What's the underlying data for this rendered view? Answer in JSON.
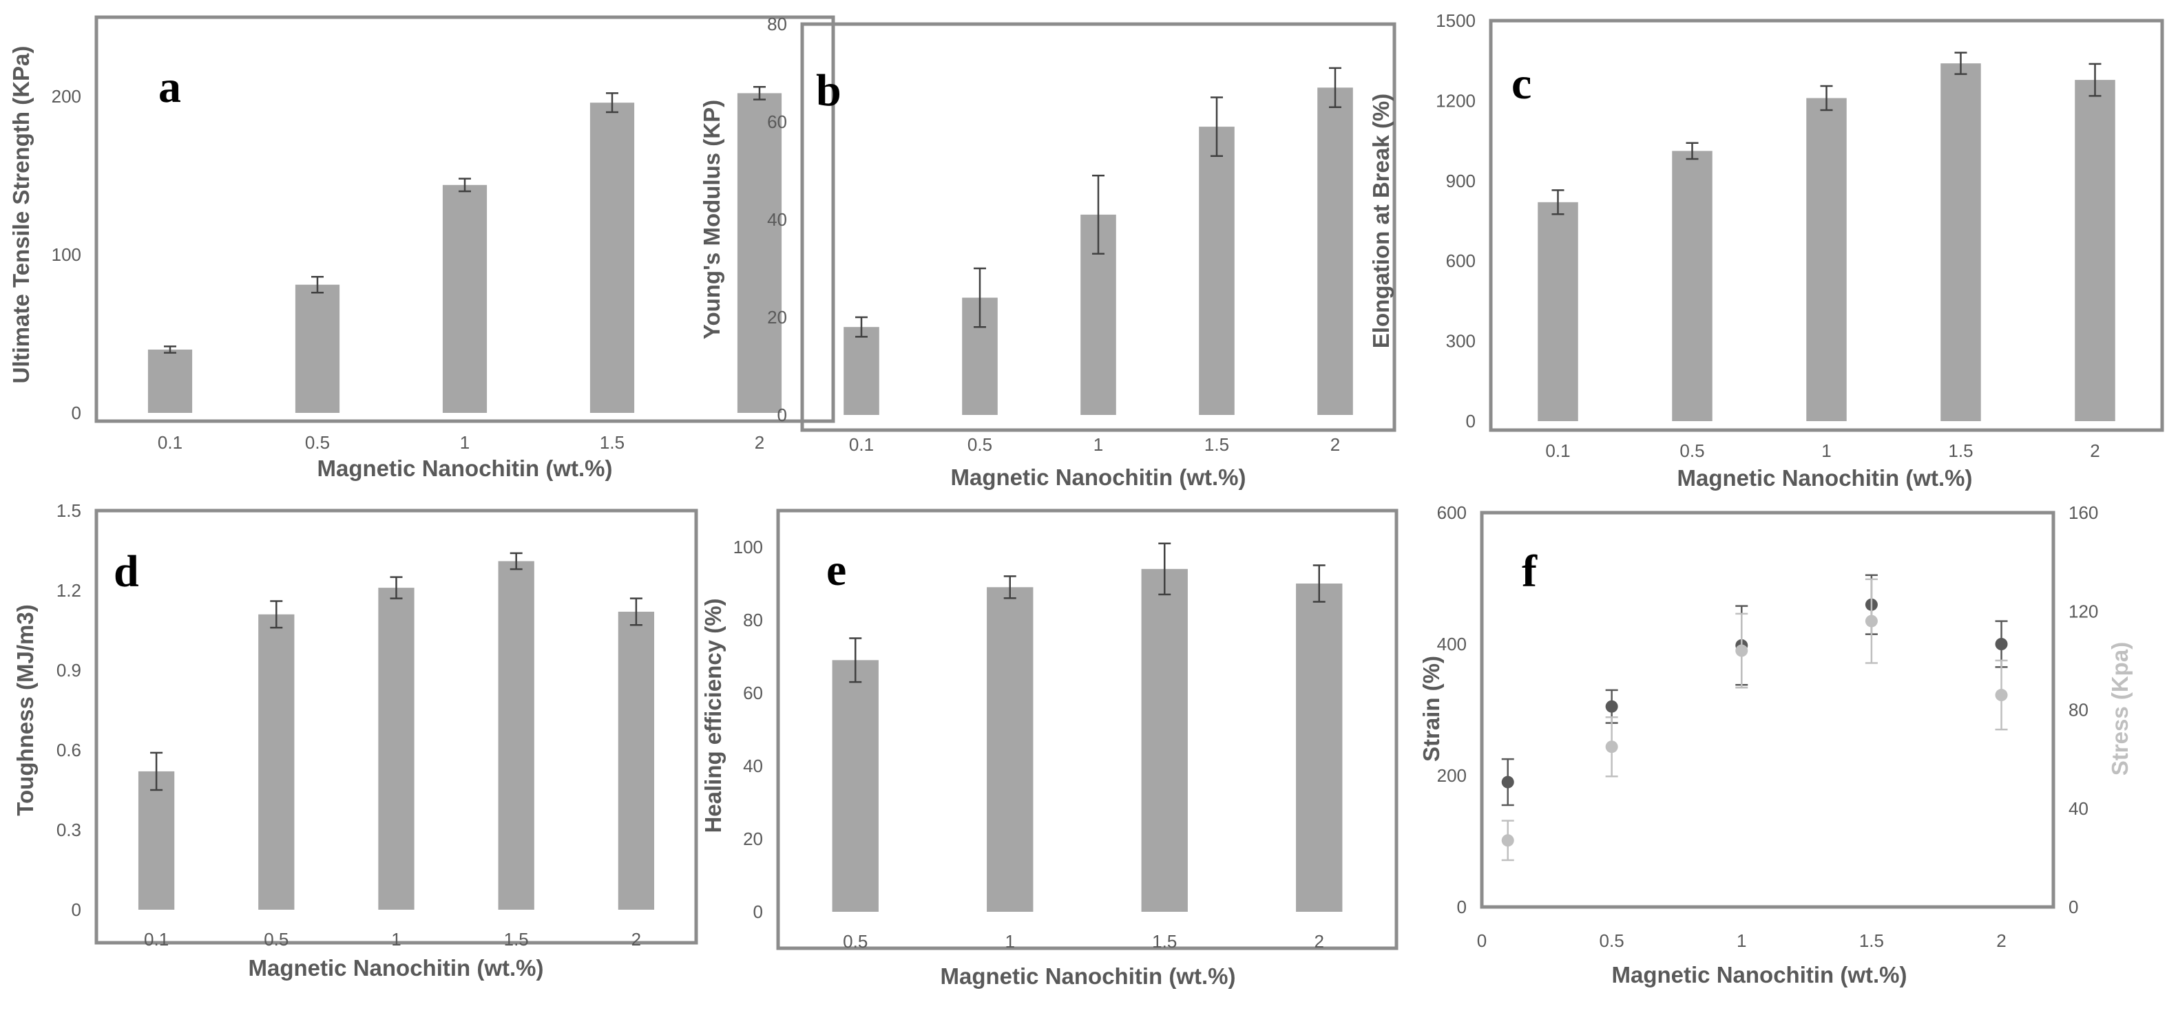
{
  "colors": {
    "bar": "#a6a6a6",
    "frame": "#8c8c8c",
    "err": "#404040",
    "strain": "#595959",
    "stress": "#bfbfbf",
    "text": "#595959"
  },
  "chart_data": [
    {
      "id": "a",
      "type": "bar",
      "letter": "a",
      "categories": [
        "0.1",
        "0.5",
        "1",
        "1.5",
        "2"
      ],
      "values": [
        40,
        81,
        144,
        196,
        202
      ],
      "errors": [
        2,
        5,
        4,
        6,
        4
      ],
      "ylim": [
        0,
        250
      ],
      "yticks": [
        "0",
        "100",
        "200"
      ],
      "ytick_values": [
        0,
        100,
        200
      ],
      "xlabel": "Magnetic Nanochitin (wt.%)",
      "ylabel": "Ultimate Tensile Strength (KPa)"
    },
    {
      "id": "b",
      "type": "bar",
      "letter": "b",
      "categories": [
        "0.1",
        "0.5",
        "1",
        "1.5",
        "2"
      ],
      "values": [
        18,
        24,
        41,
        59,
        67
      ],
      "errors": [
        2,
        6,
        8,
        6,
        4
      ],
      "ylim": [
        0,
        80
      ],
      "yticks": [
        "0",
        "20",
        "40",
        "60",
        "80"
      ],
      "ytick_values": [
        0,
        20,
        40,
        60,
        80
      ],
      "xlabel": "Magnetic Nanochitin (wt.%)",
      "ylabel": "Young's Modulus (KP)"
    },
    {
      "id": "c",
      "type": "bar",
      "letter": "c",
      "categories": [
        "0.1",
        "0.5",
        "1",
        "1.5",
        "2"
      ],
      "values": [
        820,
        1012,
        1210,
        1340,
        1278
      ],
      "errors": [
        45,
        30,
        45,
        40,
        60
      ],
      "ylim": [
        0,
        1500
      ],
      "yticks": [
        "0",
        "300",
        "600",
        "900",
        "1200",
        "1500"
      ],
      "ytick_values": [
        0,
        300,
        600,
        900,
        1200,
        1500
      ],
      "xlabel": "Magnetic Nanochitin (wt.%)",
      "ylabel": "Elongation at Break (%)"
    },
    {
      "id": "d",
      "type": "bar",
      "letter": "d",
      "categories": [
        "0.1",
        "0.5",
        "1",
        "1.5",
        "2"
      ],
      "values": [
        0.52,
        1.11,
        1.21,
        1.31,
        1.12
      ],
      "errors": [
        0.07,
        0.05,
        0.04,
        0.03,
        0.05
      ],
      "ylim": [
        0,
        1.5
      ],
      "yticks": [
        "0",
        "0.3",
        "0.6",
        "0.9",
        "1.2",
        "1.5"
      ],
      "ytick_values": [
        0,
        0.3,
        0.6,
        0.9,
        1.2,
        1.5
      ],
      "xlabel": "Magnetic Nanochitin (wt.%)",
      "ylabel": "Toughness (MJ/m3)"
    },
    {
      "id": "e",
      "type": "bar",
      "letter": "e",
      "categories": [
        "0.5",
        "1",
        "1.5",
        "2"
      ],
      "values": [
        69,
        89,
        94,
        90
      ],
      "errors": [
        6,
        3,
        7,
        5
      ],
      "ylim": [
        0,
        110
      ],
      "yticks": [
        "0",
        "20",
        "40",
        "60",
        "80",
        "100"
      ],
      "ytick_values": [
        0,
        20,
        40,
        60,
        80,
        100
      ],
      "xlabel": "Magnetic Nanochitin (wt.%)",
      "ylabel": "Healing efficiency (%)"
    },
    {
      "id": "f",
      "type": "scatter",
      "letter": "f",
      "xlim": [
        0,
        2.2
      ],
      "xticks": [
        "0",
        "0.5",
        "1",
        "1.5",
        "2"
      ],
      "xtick_values": [
        0,
        0.5,
        1,
        1.5,
        2
      ],
      "ylim": [
        0,
        600
      ],
      "yticks": [
        "0",
        "200",
        "400",
        "600"
      ],
      "ytick_values": [
        0,
        200,
        400,
        600
      ],
      "y2lim": [
        0,
        160
      ],
      "y2ticks": [
        "0",
        "40",
        "80",
        "120",
        "160"
      ],
      "y2tick_values": [
        0,
        40,
        80,
        120,
        160
      ],
      "xlabel": "Magnetic Nanochitin (wt.%)",
      "ylabel": "Strain (%)",
      "y2label": "Stress (Kpa)",
      "series": [
        {
          "name": "Strain (%)",
          "axis": "left",
          "x": [
            0.1,
            0.5,
            1,
            1.5,
            2
          ],
          "values": [
            190,
            305,
            398,
            460,
            400
          ],
          "errors": [
            35,
            25,
            60,
            45,
            35
          ]
        },
        {
          "name": "Stress (Kpa)",
          "axis": "right",
          "x": [
            0.1,
            0.5,
            1,
            1.5,
            2
          ],
          "values": [
            27,
            65,
            104,
            116,
            86
          ],
          "errors": [
            8,
            12,
            15,
            17,
            14
          ]
        }
      ]
    }
  ]
}
